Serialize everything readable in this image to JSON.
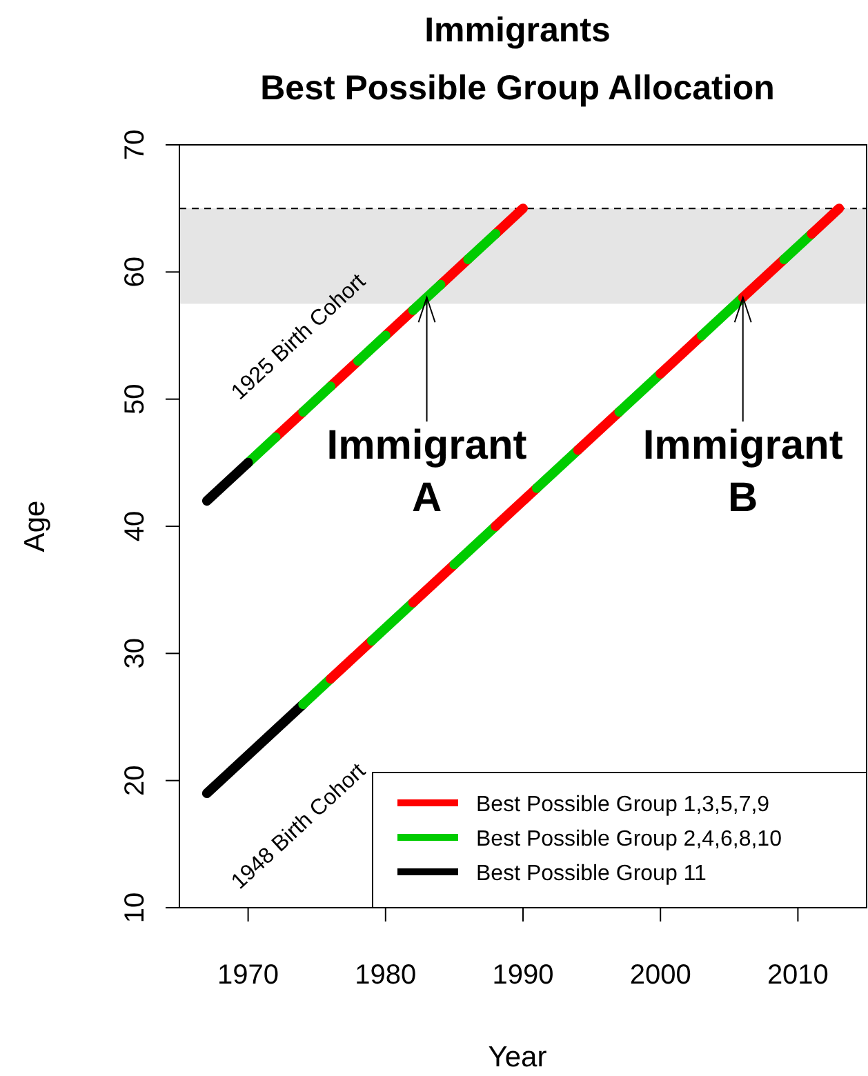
{
  "chart_data": {
    "type": "line",
    "title": "Immigrants",
    "subtitle": "Best Possible Group Allocation",
    "xlabel": "Year",
    "ylabel": "Age",
    "xlim": [
      1965,
      2015
    ],
    "xticks": [
      1970,
      1980,
      1990,
      2000,
      2010
    ],
    "ylim": [
      10,
      70
    ],
    "yticks": [
      10,
      20,
      30,
      40,
      50,
      60,
      70
    ],
    "grid": false,
    "legend": "bottom right",
    "line_style": "solid",
    "marker": "none",
    "bands": [
      {
        "axis": "y",
        "from": 57.5,
        "to": 65,
        "color": "#e5e5e5"
      }
    ],
    "ref_lines": [
      {
        "axis": "y",
        "value": 65,
        "color": "#000000",
        "line_style": "dashed"
      }
    ],
    "annotations": [
      "1925 Birth Cohort",
      "1948 Birth Cohort",
      {
        "text": "Immigrant\nA",
        "x": 1983,
        "y": 58
      },
      {
        "text": "Immigrant\nB",
        "x": 2006,
        "y": 58
      }
    ],
    "series": [
      {
        "name": "Best Possible Group 1,3,5,7,9",
        "color": "#ff0000",
        "x": [
          1972,
          1974
        ],
        "values": [
          47,
          49
        ]
      },
      {
        "name": "Best Possible Group 2,4,6,8,10",
        "color": "#00cc00",
        "x": [
          1970,
          1972
        ],
        "values": [
          45,
          47
        ]
      },
      {
        "name": "Best Possible Group 11",
        "color": "#000000",
        "x": [
          1967,
          1970
        ],
        "values": [
          42,
          45
        ]
      },
      {
        "color": "#000000",
        "x": [
          1967,
          1974
        ],
        "values": [
          19,
          26
        ]
      },
      {
        "color": "#ff0000",
        "x": [
          1976,
          1978
        ],
        "values": [
          51,
          53
        ]
      },
      {
        "color": "#ff0000",
        "x": [
          1980,
          1982
        ],
        "values": [
          55,
          57
        ]
      },
      {
        "color": "#ff0000",
        "x": [
          1984,
          1986
        ],
        "values": [
          59,
          61
        ]
      },
      {
        "color": "#ff0000",
        "x": [
          1988,
          1990
        ],
        "values": [
          63,
          65
        ]
      },
      {
        "color": "#00cc00",
        "x": [
          1974,
          1976
        ],
        "values": [
          49,
          51
        ]
      },
      {
        "color": "#00cc00",
        "x": [
          1978,
          1980
        ],
        "values": [
          53,
          55
        ]
      },
      {
        "color": "#00cc00",
        "x": [
          1982,
          1984
        ],
        "values": [
          57,
          59
        ]
      },
      {
        "color": "#00cc00",
        "x": [
          1986,
          1988
        ],
        "values": [
          61,
          63
        ]
      },
      {
        "color": "#00cc00",
        "x": [
          1974,
          1976
        ],
        "values": [
          26,
          28
        ]
      },
      {
        "color": "#ff0000",
        "x": [
          1976,
          1979
        ],
        "values": [
          28,
          31
        ]
      },
      {
        "color": "#00cc00",
        "x": [
          1979,
          1982
        ],
        "values": [
          31,
          34
        ]
      },
      {
        "color": "#ff0000",
        "x": [
          1982,
          1985
        ],
        "values": [
          34,
          37
        ]
      },
      {
        "color": "#00cc00",
        "x": [
          1985,
          1988
        ],
        "values": [
          37,
          40
        ]
      },
      {
        "color": "#ff0000",
        "x": [
          1988,
          1991
        ],
        "values": [
          40,
          43
        ]
      },
      {
        "color": "#00cc00",
        "x": [
          1991,
          1994
        ],
        "values": [
          43,
          46
        ]
      },
      {
        "color": "#ff0000",
        "x": [
          1994,
          1997
        ],
        "values": [
          46,
          49
        ]
      },
      {
        "color": "#00cc00",
        "x": [
          1997,
          2000
        ],
        "values": [
          49,
          52
        ]
      },
      {
        "color": "#ff0000",
        "x": [
          2000,
          2003
        ],
        "values": [
          52,
          55
        ]
      },
      {
        "color": "#00cc00",
        "x": [
          2003,
          2006
        ],
        "values": [
          55,
          58
        ]
      },
      {
        "color": "#ff0000",
        "x": [
          2006,
          2009
        ],
        "values": [
          58,
          61
        ]
      },
      {
        "color": "#00cc00",
        "x": [
          2009,
          2011
        ],
        "values": [
          61,
          63
        ]
      },
      {
        "color": "#ff0000",
        "x": [
          2011,
          2013
        ],
        "values": [
          63,
          65
        ]
      }
    ]
  }
}
